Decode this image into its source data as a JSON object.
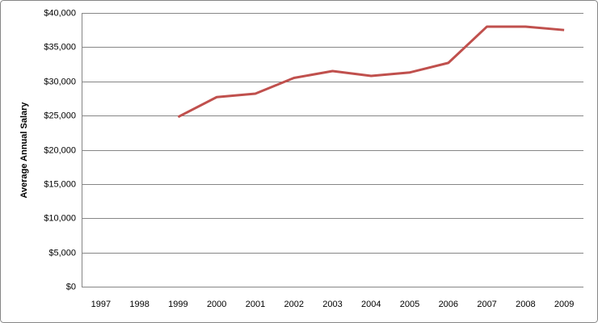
{
  "chart_data": {
    "type": "line",
    "y_label": "Average Annual Salary",
    "categories": [
      "1997",
      "1998",
      "1999",
      "2000",
      "2001",
      "2002",
      "2003",
      "2004",
      "2005",
      "2006",
      "2007",
      "2008",
      "2009"
    ],
    "series": [
      {
        "name": "Average Annual Salary",
        "color": "#c0504d",
        "values": [
          null,
          null,
          24800,
          27700,
          28200,
          30500,
          31500,
          30800,
          31300,
          32700,
          38000,
          38000,
          37500
        ]
      }
    ],
    "ylim": [
      0,
      40000
    ],
    "yticks": [
      {
        "value": 0,
        "label": "$0"
      },
      {
        "value": 5000,
        "label": "$5,000"
      },
      {
        "value": 10000,
        "label": "$10,000"
      },
      {
        "value": 15000,
        "label": "$15,000"
      },
      {
        "value": 20000,
        "label": "$20,000"
      },
      {
        "value": 25000,
        "label": "$25,000"
      },
      {
        "value": 30000,
        "label": "$30,000"
      },
      {
        "value": 35000,
        "label": "$35,000"
      },
      {
        "value": 40000,
        "label": "$40,000"
      }
    ],
    "grid": true
  }
}
